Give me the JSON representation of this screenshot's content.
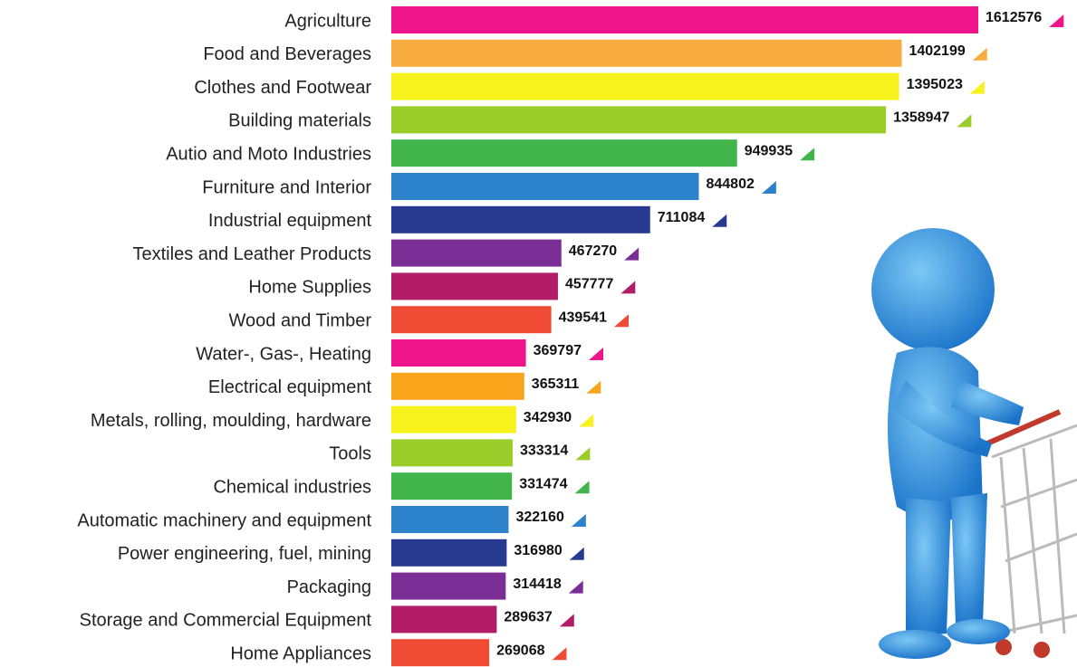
{
  "chart_data": {
    "type": "bar",
    "orientation": "horizontal",
    "categories": [
      "Agriculture",
      "Food and Beverages",
      "Clothes and Footwear",
      "Building materials",
      "Autio and Moto Industries",
      "Furniture and Interior",
      "Industrial equipment",
      "Textiles and Leather Products",
      "Home Supplies",
      "Wood and Timber",
      "Water-, Gas-, Heating",
      "Electrical equipment",
      "Metals, rolling, moulding, hardware",
      "Tools",
      "Chemical industries",
      "Automatic machinery and equipment",
      "Power engineering, fuel, mining",
      "Packaging",
      "Storage and Commercial Equipment",
      "Home Appliances"
    ],
    "values": [
      1612576,
      1402199,
      1395023,
      1358947,
      949935,
      844802,
      711084,
      467270,
      457777,
      439541,
      369797,
      365311,
      342930,
      333314,
      331474,
      322160,
      316980,
      314418,
      289637,
      269068
    ],
    "colors": [
      "#f0158a",
      "#f9ac3f",
      "#f7f21c",
      "#9acd2a",
      "#41b549",
      "#2c83cc",
      "#283a8f",
      "#7b2f96",
      "#b31c66",
      "#f04b34",
      "#f0158a",
      "#f9a51c",
      "#f7f21c",
      "#9acd2a",
      "#41b549",
      "#2c83cc",
      "#283a8f",
      "#7b2f96",
      "#b31c66",
      "#f04b34"
    ]
  }
}
